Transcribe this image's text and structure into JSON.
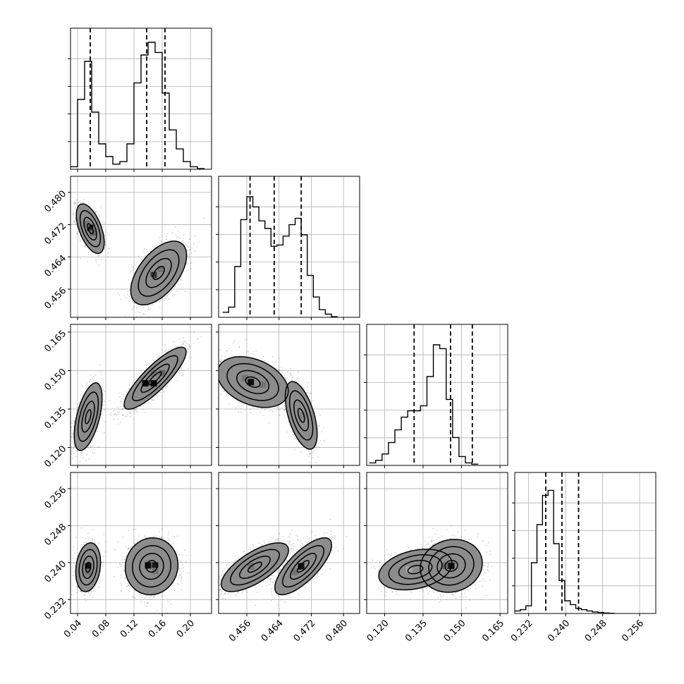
{
  "chart_data": {
    "type": "corner",
    "grid": true,
    "parameters": [
      {
        "range": [
          0.03,
          0.23
        ],
        "ticks": [
          0.04,
          0.08,
          0.12,
          0.16,
          0.2
        ],
        "tick_labels": [
          "0.04",
          "0.08",
          "0.12",
          "0.16",
          "0.20"
        ],
        "quantiles": [
          0.058,
          0.138,
          0.164
        ],
        "hist": {
          "bin_start": 0.03,
          "bin_width": 0.01,
          "counts": [
            0.02,
            0.55,
            0.85,
            0.45,
            0.2,
            0.1,
            0.04,
            0.06,
            0.2,
            0.68,
            0.9,
            1.0,
            0.92,
            0.6,
            0.31,
            0.16,
            0.06,
            0.02,
            0.005
          ]
        }
      },
      {
        "range": [
          0.449,
          0.484
        ],
        "ticks": [
          0.456,
          0.464,
          0.472,
          0.48
        ],
        "tick_labels": [
          "0.456",
          "0.464",
          "0.472",
          "0.480"
        ],
        "quantiles": [
          0.4568,
          0.4628,
          0.4695
        ],
        "hist": {
          "bin_start": 0.45,
          "bin_width": 0.0015,
          "counts": [
            0.04,
            0.08,
            0.4,
            0.77,
            0.95,
            0.87,
            0.76,
            0.7,
            0.56,
            0.57,
            0.64,
            0.73,
            0.78,
            0.65,
            0.33,
            0.16,
            0.06,
            0.025,
            0.005
          ]
        }
      },
      {
        "range": [
          0.113,
          0.168
        ],
        "ticks": [
          0.12,
          0.135,
          0.15,
          0.165
        ],
        "tick_labels": [
          "0.120",
          "0.135",
          "0.150",
          "0.165"
        ],
        "quantiles": [
          0.1315,
          0.1457,
          0.1542
        ],
        "hist": {
          "bin_start": 0.114,
          "bin_width": 0.0025,
          "counts": [
            0.02,
            0.04,
            0.09,
            0.18,
            0.28,
            0.38,
            0.43,
            0.43,
            0.47,
            0.7,
            0.95,
            0.92,
            0.52,
            0.22,
            0.07,
            0.02,
            0.01
          ]
        }
      },
      {
        "range": [
          0.229,
          0.2595
        ],
        "ticks": [
          0.232,
          0.24,
          0.248,
          0.256
        ],
        "tick_labels": [
          "0.232",
          "0.240",
          "0.248",
          "0.256"
        ],
        "quantiles": [
          0.2357,
          0.2392,
          0.2428
        ],
        "hist": {
          "bin_start": 0.229,
          "bin_width": 0.0012,
          "counts": [
            0.02,
            0.03,
            0.06,
            0.4,
            0.7,
            0.93,
            0.97,
            0.55,
            0.26,
            0.1,
            0.07,
            0.04,
            0.03,
            0.02,
            0.012,
            0.008,
            0.004,
            0.002
          ]
        }
      }
    ],
    "pairs": [
      {
        "row": 1,
        "col": 0,
        "modes": [
          {
            "center": [
              0.058,
              0.471
            ],
            "sd": [
              0.009,
              0.0028
            ],
            "rho": -0.55,
            "weight": 0.4
          },
          {
            "center": [
              0.155,
              0.46
            ],
            "sd": [
              0.018,
              0.0036
            ],
            "rho": 0.55,
            "weight": 0.6
          }
        ],
        "contour_levels": [
          0.45,
          1.0,
          1.6,
          2.2
        ],
        "cells": [
          {
            "x": 0.058,
            "y": 0.4712,
            "shade": 0.9
          },
          {
            "x": 0.062,
            "y": 0.47,
            "shade": 0.6
          },
          {
            "x": 0.052,
            "y": 0.4722,
            "shade": 0.55
          },
          {
            "x": 0.148,
            "y": 0.4595,
            "shade": 0.78
          },
          {
            "x": 0.158,
            "y": 0.461,
            "shade": 0.55
          },
          {
            "x": 0.142,
            "y": 0.4582,
            "shade": 0.45
          }
        ]
      },
      {
        "row": 2,
        "col": 0,
        "modes": [
          {
            "center": [
              0.055,
              0.132
            ],
            "sd": [
              0.009,
              0.006
            ],
            "rho": 0.55,
            "weight": 0.4
          },
          {
            "center": [
              0.15,
              0.147
            ],
            "sd": [
              0.02,
              0.0055
            ],
            "rho": 0.85,
            "weight": 0.6
          }
        ],
        "contour_levels": [
          0.45,
          1.0,
          1.6,
          2.2
        ],
        "cells": [
          {
            "x": 0.136,
            "y": 0.145,
            "shade": 0.95
          },
          {
            "x": 0.148,
            "y": 0.145,
            "shade": 0.95
          },
          {
            "x": 0.16,
            "y": 0.149,
            "shade": 0.6
          },
          {
            "x": 0.148,
            "y": 0.149,
            "shade": 0.55
          },
          {
            "x": 0.054,
            "y": 0.132,
            "shade": 0.45
          }
        ]
      },
      {
        "row": 2,
        "col": 1,
        "modes": [
          {
            "center": [
              0.4575,
              0.1455
            ],
            "sd": [
              0.004,
              0.0045
            ],
            "rho": -0.35,
            "weight": 0.6
          },
          {
            "center": [
              0.4695,
              0.1325
            ],
            "sd": [
              0.0018,
              0.006
            ],
            "rho": -0.55,
            "weight": 0.4
          }
        ],
        "contour_levels": [
          0.45,
          1.0,
          1.6,
          2.2
        ],
        "cells": [
          {
            "x": 0.457,
            "y": 0.1455,
            "shade": 0.95
          },
          {
            "x": 0.4555,
            "y": 0.147,
            "shade": 0.55
          },
          {
            "x": 0.46,
            "y": 0.1445,
            "shade": 0.55
          },
          {
            "x": 0.47,
            "y": 0.1325,
            "shade": 0.5
          }
        ]
      },
      {
        "row": 3,
        "col": 0,
        "modes": [
          {
            "center": [
              0.055,
              0.239
            ],
            "sd": [
              0.008,
              0.0024
            ],
            "rho": 0.2,
            "weight": 0.4
          },
          {
            "center": [
              0.145,
              0.2392
            ],
            "sd": [
              0.017,
              0.0028
            ],
            "rho": 0.05,
            "weight": 0.6
          }
        ],
        "contour_levels": [
          0.45,
          1.0,
          1.6,
          2.2
        ],
        "cells": [
          {
            "x": 0.055,
            "y": 0.2392,
            "shade": 0.95
          },
          {
            "x": 0.055,
            "y": 0.238,
            "shade": 0.55
          },
          {
            "x": 0.14,
            "y": 0.2394,
            "shade": 0.95
          },
          {
            "x": 0.15,
            "y": 0.2394,
            "shade": 0.9
          },
          {
            "x": 0.15,
            "y": 0.2382,
            "shade": 0.55
          }
        ]
      },
      {
        "row": 3,
        "col": 1,
        "modes": [
          {
            "center": [
              0.458,
              0.239
            ],
            "sd": [
              0.0038,
              0.0024
            ],
            "rho": 0.7,
            "weight": 0.6
          },
          {
            "center": [
              0.47,
              0.2392
            ],
            "sd": [
              0.0032,
              0.0028
            ],
            "rho": 0.75,
            "weight": 0.4
          }
        ],
        "contour_levels": [
          0.45,
          1.0,
          1.6,
          2.2
        ],
        "cells": [
          {
            "x": 0.4695,
            "y": 0.2392,
            "shade": 0.95
          },
          {
            "x": 0.457,
            "y": 0.2392,
            "shade": 0.55
          },
          {
            "x": 0.4555,
            "y": 0.238,
            "shade": 0.45
          },
          {
            "x": 0.468,
            "y": 0.238,
            "shade": 0.55
          }
        ]
      },
      {
        "row": 3,
        "col": 2,
        "modes": [
          {
            "center": [
              0.146,
              0.2393
            ],
            "sd": [
              0.0055,
              0.0026
            ],
            "rho": 0.1,
            "weight": 0.65
          },
          {
            "center": [
              0.132,
              0.2385
            ],
            "sd": [
              0.0065,
              0.002
            ],
            "rho": 0.3,
            "weight": 0.35
          }
        ],
        "contour_levels": [
          0.45,
          1.0,
          1.6,
          2.2
        ],
        "cells": [
          {
            "x": 0.146,
            "y": 0.2393,
            "shade": 0.95
          },
          {
            "x": 0.1435,
            "y": 0.2393,
            "shade": 0.6
          },
          {
            "x": 0.1485,
            "y": 0.2393,
            "shade": 0.45
          },
          {
            "x": 0.1295,
            "y": 0.2385,
            "shade": 0.35
          }
        ]
      }
    ]
  }
}
